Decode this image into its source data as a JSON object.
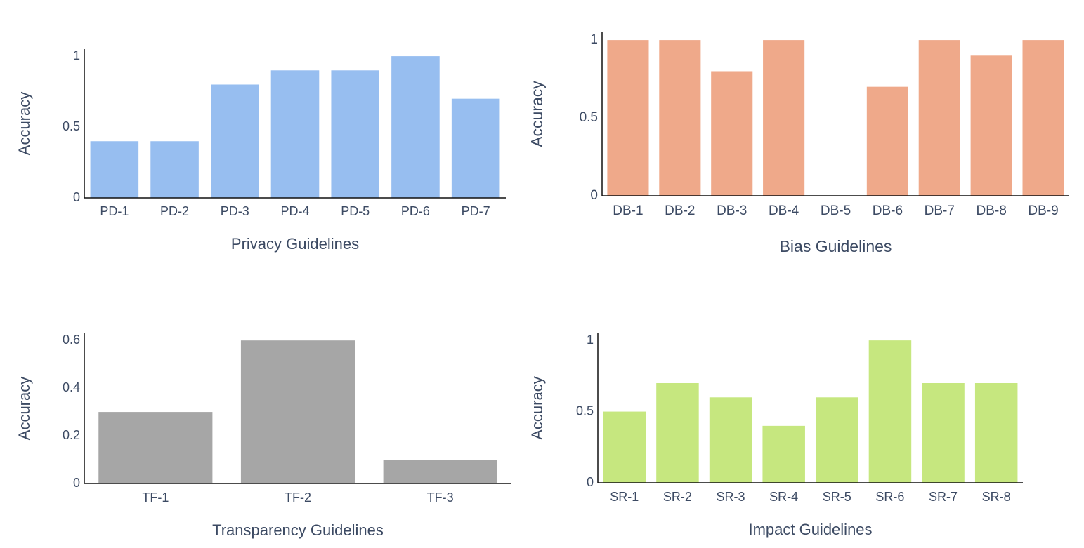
{
  "chart_data": [
    {
      "type": "bar",
      "xlabel": "Privacy Guidelines",
      "ylabel": "Accuracy",
      "categories": [
        "PD-1",
        "PD-2",
        "PD-3",
        "PD-4",
        "PD-5",
        "PD-6",
        "PD-7"
      ],
      "values": [
        0.4,
        0.4,
        0.8,
        0.9,
        0.9,
        1.0,
        0.7
      ],
      "ylim": [
        0,
        1.05
      ],
      "yticks": [
        0,
        0.5,
        1
      ],
      "ytick_labels": [
        "0",
        "0.5",
        "1"
      ],
      "color": "#97bef0",
      "grid": false,
      "legend": "none"
    },
    {
      "type": "bar",
      "xlabel": "Bias Guidelines",
      "ylabel": "Accuracy",
      "categories": [
        "DB-1",
        "DB-2",
        "DB-3",
        "DB-4",
        "DB-5",
        "DB-6",
        "DB-7",
        "DB-8",
        "DB-9"
      ],
      "values": [
        1.0,
        1.0,
        0.8,
        1.0,
        0,
        0.7,
        1.0,
        0.9,
        1.0
      ],
      "ylim": [
        0,
        1.05
      ],
      "yticks": [
        0,
        0.5,
        1
      ],
      "ytick_labels": [
        "0",
        "0.5",
        "1"
      ],
      "color": "#efa98a",
      "grid": false,
      "legend": "none"
    },
    {
      "type": "bar",
      "xlabel": "Transparency Guidelines",
      "ylabel": "Accuracy",
      "categories": [
        "TF-1",
        "TF-2",
        "TF-3"
      ],
      "values": [
        0.3,
        0.6,
        0.1
      ],
      "ylim": [
        0,
        0.63
      ],
      "yticks": [
        0,
        0.2,
        0.4,
        0.6
      ],
      "ytick_labels": [
        "0",
        "0.2",
        "0.4",
        "0.6"
      ],
      "color": "#a6a6a6",
      "grid": false,
      "legend": "none"
    },
    {
      "type": "bar",
      "xlabel": "Impact Guidelines",
      "ylabel": "Accuracy",
      "categories": [
        "SR-1",
        "SR-2",
        "SR-3",
        "SR-4",
        "SR-5",
        "SR-6",
        "SR-7",
        "SR-8"
      ],
      "values": [
        0.5,
        0.7,
        0.6,
        0.4,
        0.6,
        1.0,
        0.7,
        0.7
      ],
      "ylim": [
        0,
        1.05
      ],
      "yticks": [
        0,
        0.5,
        1
      ],
      "ytick_labels": [
        "0",
        "0.5",
        "1"
      ],
      "color": "#c6e77f",
      "grid": false,
      "legend": "none"
    }
  ]
}
